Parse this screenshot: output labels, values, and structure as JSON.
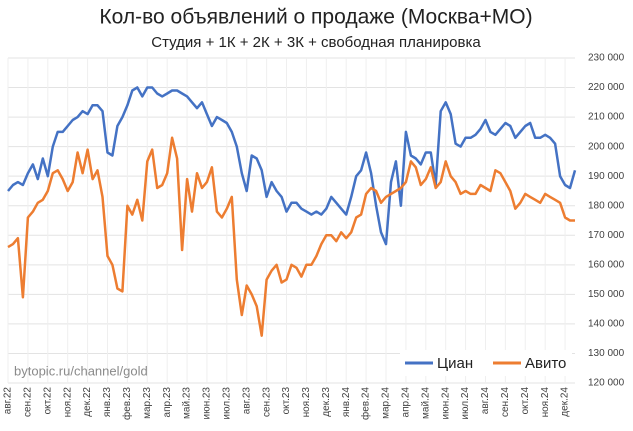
{
  "chart_data": {
    "type": "line",
    "title": "Кол-во объявлений о продаже (Москва+МО)",
    "subtitle": "Студия + 1К + 2К + 3К + свободная планировка",
    "annotation": "bytopic.ru/channel/gold",
    "categories": [
      "авг.22",
      null,
      null,
      null,
      "сен.22",
      null,
      null,
      null,
      "окт.22",
      null,
      null,
      null,
      "ноя.22",
      null,
      null,
      null,
      "дек.22",
      null,
      null,
      null,
      "янв.23",
      null,
      null,
      null,
      "фев.23",
      null,
      null,
      null,
      "мар.23",
      null,
      null,
      null,
      "апр.23",
      null,
      null,
      null,
      "май.23",
      null,
      null,
      null,
      "июн.23",
      null,
      null,
      null,
      "июл.23",
      null,
      null,
      null,
      "авг.23",
      null,
      null,
      null,
      "сен.23",
      null,
      null,
      null,
      "окт.23",
      null,
      null,
      null,
      "ноя.23",
      null,
      null,
      null,
      "дек.23",
      null,
      null,
      null,
      "янв.24",
      null,
      null,
      null,
      "фев.24",
      null,
      null,
      null,
      "мар.24",
      null,
      null,
      null,
      "апр.24",
      null,
      null,
      null,
      "май.24",
      null,
      null,
      null,
      "июн.24",
      null,
      null,
      null,
      "июл.24",
      null,
      null,
      null,
      "авг.24",
      null,
      null,
      null,
      "сен.24",
      null,
      null,
      null,
      "окт.24",
      null,
      null,
      null,
      "ноя.24",
      null,
      null,
      null,
      "дек.24",
      null,
      null
    ],
    "series": [
      {
        "name": "Циан",
        "color": "#4472c4",
        "values": [
          185000,
          187000,
          188000,
          187000,
          191000,
          194000,
          189000,
          196000,
          190000,
          200000,
          205000,
          205000,
          207000,
          209000,
          210000,
          212000,
          211000,
          214000,
          214000,
          212000,
          198000,
          197000,
          207000,
          210000,
          214000,
          219000,
          220000,
          217000,
          220000,
          220000,
          218000,
          217000,
          218000,
          219000,
          219000,
          218000,
          217000,
          215000,
          213000,
          215000,
          211000,
          207000,
          210000,
          209000,
          208000,
          205000,
          200000,
          191000,
          185000,
          197000,
          196000,
          192000,
          183000,
          188000,
          185000,
          183000,
          178000,
          181000,
          181000,
          179000,
          178000,
          177000,
          178000,
          177000,
          179000,
          183000,
          181000,
          179000,
          177000,
          183000,
          190000,
          192000,
          198000,
          191000,
          180000,
          171000,
          167000,
          188000,
          195000,
          180000,
          205000,
          197000,
          196000,
          194000,
          198000,
          198000,
          187000,
          212000,
          215000,
          211000,
          201000,
          200000,
          203000,
          203000,
          204000,
          206000,
          209000,
          205000,
          204000,
          206000,
          208000,
          207000,
          203000,
          205000,
          207000,
          208000,
          203000,
          203000,
          204000,
          203000,
          201000,
          190000,
          187000,
          186000,
          192000
        ]
      },
      {
        "name": "Авито",
        "color": "#ed7d31",
        "values": [
          166000,
          167000,
          169000,
          149000,
          176000,
          178000,
          181000,
          182000,
          185000,
          191000,
          192000,
          189000,
          185000,
          188000,
          198000,
          191000,
          199000,
          189000,
          192000,
          183000,
          163000,
          160000,
          152000,
          151000,
          180000,
          177000,
          182000,
          175000,
          195000,
          199000,
          186000,
          187000,
          191000,
          203000,
          196000,
          165000,
          189000,
          178000,
          191000,
          186000,
          188000,
          193000,
          178000,
          176000,
          179000,
          183000,
          155000,
          143000,
          153000,
          150000,
          146000,
          136000,
          155000,
          158000,
          160000,
          154000,
          155000,
          160000,
          159000,
          156000,
          160000,
          160000,
          163000,
          167000,
          170000,
          170000,
          168000,
          171000,
          169000,
          171000,
          176000,
          177000,
          184000,
          186000,
          185000,
          181000,
          183000,
          184000,
          185000,
          186000,
          188000,
          195000,
          193000,
          187000,
          189000,
          193000,
          186000,
          188000,
          195000,
          190000,
          188000,
          184000,
          185000,
          184000,
          184000,
          187000,
          186000,
          185000,
          192000,
          191000,
          188000,
          185000,
          179000,
          181000,
          184000,
          183000,
          182000,
          181000,
          184000,
          183000,
          182000,
          181000,
          176000,
          175000,
          175000
        ]
      }
    ],
    "ylim": [
      120000,
      230000
    ],
    "yticks": [
      {
        "value": 120000,
        "label": "120 000"
      },
      {
        "value": 130000,
        "label": "130 000"
      },
      {
        "value": 140000,
        "label": "140 000"
      },
      {
        "value": 150000,
        "label": "150 000"
      },
      {
        "value": 160000,
        "label": "160 000"
      },
      {
        "value": 170000,
        "label": "170 000"
      },
      {
        "value": 180000,
        "label": "180 000"
      },
      {
        "value": 190000,
        "label": "190 000"
      },
      {
        "value": 200000,
        "label": "200 000"
      },
      {
        "value": 210000,
        "label": "210 000"
      },
      {
        "value": 220000,
        "label": "220 000"
      },
      {
        "value": 230000,
        "label": "230 000"
      }
    ],
    "grid": true,
    "legend": "lower right"
  }
}
